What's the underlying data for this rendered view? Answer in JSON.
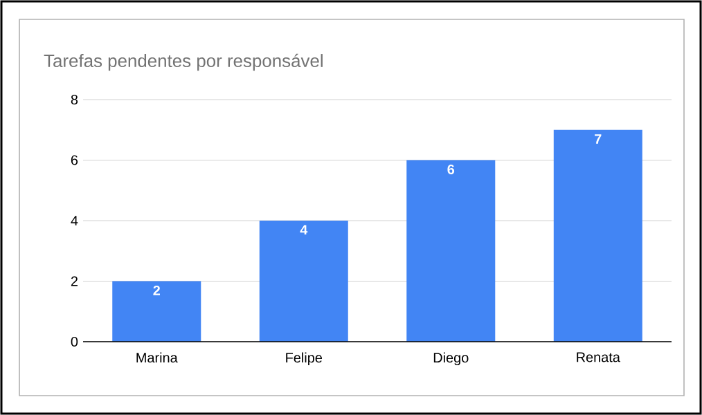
{
  "chart_data": {
    "type": "bar",
    "title": "Tarefas pendentes por responsável",
    "categories": [
      "Marina",
      "Felipe",
      "Diego",
      "Renata"
    ],
    "values": [
      2,
      4,
      6,
      7
    ],
    "color": "#4285f4",
    "ylim": [
      0,
      8
    ],
    "yticks": [
      0,
      2,
      4,
      6,
      8
    ],
    "grid": "y",
    "data_labels": true
  }
}
